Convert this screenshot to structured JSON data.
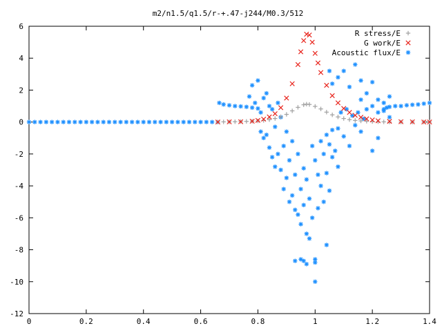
{
  "chart_data": {
    "type": "scatter",
    "title": "m2/n1.5/q1.5/r-+.47-j244/M0.3/512",
    "xlabel": "",
    "ylabel": "",
    "xlim": [
      0,
      1.4
    ],
    "ylim": [
      -12,
      6
    ],
    "x_ticks": [
      0,
      0.2,
      0.4,
      0.6,
      0.8,
      1,
      1.2,
      1.4
    ],
    "x_tick_labels": [
      "0",
      "0.2",
      "0.4",
      "0.6",
      "0.8",
      "1",
      "1.2",
      "1.4"
    ],
    "y_ticks": [
      -12,
      -10,
      -8,
      -6,
      -4,
      -2,
      0,
      2,
      4,
      6
    ],
    "y_tick_labels": [
      "-12",
      "-10",
      "-8",
      "-6",
      "-4",
      "-2",
      "0",
      "2",
      "4",
      "6"
    ],
    "grid": false,
    "legend_position": "top-right",
    "series": [
      {
        "name": "R stress/E",
        "marker": "+",
        "color": "#a0a0a0",
        "points": [
          [
            0.66,
            0.0
          ],
          [
            0.68,
            0.01
          ],
          [
            0.7,
            0.01
          ],
          [
            0.72,
            0.02
          ],
          [
            0.74,
            0.03
          ],
          [
            0.76,
            0.04
          ],
          [
            0.78,
            0.05
          ],
          [
            0.8,
            0.07
          ],
          [
            0.82,
            0.1
          ],
          [
            0.84,
            0.15
          ],
          [
            0.86,
            0.22
          ],
          [
            0.88,
            0.33
          ],
          [
            0.9,
            0.48
          ],
          [
            0.92,
            0.7
          ],
          [
            0.94,
            0.92
          ],
          [
            0.96,
            1.08
          ],
          [
            0.97,
            1.12
          ],
          [
            0.98,
            1.1
          ],
          [
            1.0,
            0.98
          ],
          [
            1.02,
            0.82
          ],
          [
            1.04,
            0.62
          ],
          [
            1.06,
            0.45
          ],
          [
            1.08,
            0.32
          ],
          [
            1.1,
            0.22
          ],
          [
            1.12,
            0.15
          ],
          [
            1.14,
            0.1
          ],
          [
            1.16,
            0.07
          ],
          [
            1.18,
            0.05
          ],
          [
            1.2,
            0.03
          ],
          [
            1.22,
            0.02
          ],
          [
            1.24,
            0.01
          ],
          [
            1.26,
            0.0
          ],
          [
            1.3,
            0.0
          ],
          [
            1.34,
            0.0
          ],
          [
            1.38,
            0.0
          ],
          [
            1.4,
            0.0
          ]
        ]
      },
      {
        "name": "G work/E",
        "marker": "x",
        "color": "#e8241c",
        "points": [
          [
            0.66,
            0.0
          ],
          [
            0.7,
            0.01
          ],
          [
            0.74,
            0.02
          ],
          [
            0.78,
            0.05
          ],
          [
            0.8,
            0.1
          ],
          [
            0.82,
            0.18
          ],
          [
            0.84,
            0.32
          ],
          [
            0.86,
            0.52
          ],
          [
            0.88,
            0.9
          ],
          [
            0.9,
            1.5
          ],
          [
            0.92,
            2.4
          ],
          [
            0.94,
            3.6
          ],
          [
            0.95,
            4.4
          ],
          [
            0.96,
            5.1
          ],
          [
            0.97,
            5.5
          ],
          [
            0.98,
            5.45
          ],
          [
            0.99,
            5.0
          ],
          [
            1.0,
            4.3
          ],
          [
            1.01,
            3.7
          ],
          [
            1.02,
            3.1
          ],
          [
            1.04,
            2.3
          ],
          [
            1.06,
            1.65
          ],
          [
            1.08,
            1.2
          ],
          [
            1.1,
            0.85
          ],
          [
            1.12,
            0.6
          ],
          [
            1.14,
            0.42
          ],
          [
            1.16,
            0.3
          ],
          [
            1.18,
            0.2
          ],
          [
            1.2,
            0.13
          ],
          [
            1.22,
            0.08
          ],
          [
            1.26,
            0.04
          ],
          [
            1.3,
            0.02
          ],
          [
            1.34,
            0.01
          ],
          [
            1.38,
            0.0
          ],
          [
            1.4,
            0.0
          ]
        ]
      },
      {
        "name": "Acoustic flux/E",
        "marker": "*",
        "color": "#1e90ff",
        "points": [
          [
            0.0,
            0.0
          ],
          [
            0.02,
            0.0
          ],
          [
            0.04,
            0.0
          ],
          [
            0.06,
            0.0
          ],
          [
            0.08,
            0.0
          ],
          [
            0.1,
            0.0
          ],
          [
            0.12,
            0.0
          ],
          [
            0.14,
            0.0
          ],
          [
            0.16,
            0.0
          ],
          [
            0.18,
            0.0
          ],
          [
            0.2,
            0.0
          ],
          [
            0.22,
            0.0
          ],
          [
            0.24,
            0.0
          ],
          [
            0.26,
            0.0
          ],
          [
            0.28,
            0.0
          ],
          [
            0.3,
            0.0
          ],
          [
            0.32,
            0.0
          ],
          [
            0.34,
            0.0
          ],
          [
            0.36,
            0.0
          ],
          [
            0.38,
            0.0
          ],
          [
            0.4,
            0.0
          ],
          [
            0.42,
            0.0
          ],
          [
            0.44,
            0.0
          ],
          [
            0.46,
            0.0
          ],
          [
            0.48,
            0.0
          ],
          [
            0.5,
            0.0
          ],
          [
            0.52,
            0.0
          ],
          [
            0.54,
            0.0
          ],
          [
            0.56,
            0.0
          ],
          [
            0.58,
            0.0
          ],
          [
            0.6,
            0.0
          ],
          [
            0.62,
            0.0
          ],
          [
            0.64,
            0.0
          ],
          [
            0.66,
            0.0
          ],
          [
            0.665,
            1.2
          ],
          [
            0.68,
            1.1
          ],
          [
            0.7,
            1.05
          ],
          [
            0.72,
            1.0
          ],
          [
            0.74,
            0.98
          ],
          [
            0.76,
            0.95
          ],
          [
            0.78,
            0.9
          ],
          [
            0.8,
            0.85
          ],
          [
            0.77,
            1.6
          ],
          [
            0.78,
            2.3
          ],
          [
            0.79,
            1.2
          ],
          [
            0.8,
            2.6
          ],
          [
            0.81,
            0.6
          ],
          [
            0.81,
            -0.6
          ],
          [
            0.82,
            1.5
          ],
          [
            0.82,
            -1.0
          ],
          [
            0.83,
            1.8
          ],
          [
            0.83,
            -0.8
          ],
          [
            0.84,
            1.0
          ],
          [
            0.84,
            -1.6
          ],
          [
            0.85,
            0.8
          ],
          [
            0.85,
            -2.2
          ],
          [
            0.86,
            -0.3
          ],
          [
            0.86,
            -2.8
          ],
          [
            0.87,
            1.2
          ],
          [
            0.87,
            -2.0
          ],
          [
            0.88,
            0.3
          ],
          [
            0.88,
            -3.0
          ],
          [
            0.89,
            -1.5
          ],
          [
            0.89,
            -4.2
          ],
          [
            0.9,
            -0.6
          ],
          [
            0.9,
            -3.5
          ],
          [
            0.91,
            -2.4
          ],
          [
            0.91,
            -5.0
          ],
          [
            0.92,
            -1.2
          ],
          [
            0.92,
            -4.6
          ],
          [
            0.93,
            -3.3
          ],
          [
            0.93,
            -5.5
          ],
          [
            0.94,
            -2.0
          ],
          [
            0.94,
            -5.8
          ],
          [
            0.95,
            -4.2
          ],
          [
            0.95,
            -6.4
          ],
          [
            0.96,
            -2.9
          ],
          [
            0.96,
            -5.2
          ],
          [
            0.97,
            -3.6
          ],
          [
            0.97,
            -7.0
          ],
          [
            0.98,
            -4.8
          ],
          [
            0.98,
            -7.3
          ],
          [
            0.99,
            -1.5
          ],
          [
            0.99,
            -6.0
          ],
          [
            1.0,
            -2.4
          ],
          [
            1.0,
            -8.6
          ],
          [
            1.0,
            -8.8
          ],
          [
            1.01,
            -3.3
          ],
          [
            1.01,
            -5.4
          ],
          [
            1.02,
            -1.2
          ],
          [
            1.02,
            -4.0
          ],
          [
            1.03,
            -2.0
          ],
          [
            1.03,
            -5.0
          ],
          [
            1.04,
            -0.8
          ],
          [
            1.04,
            -3.2
          ],
          [
            1.05,
            -1.4
          ],
          [
            1.05,
            -4.3
          ],
          [
            1.06,
            -0.5
          ],
          [
            1.06,
            -2.2
          ],
          [
            1.07,
            -1.8
          ],
          [
            1.08,
            -0.4
          ],
          [
            1.08,
            -2.8
          ],
          [
            1.09,
            0.6
          ],
          [
            1.1,
            -0.9
          ],
          [
            1.11,
            0.8
          ],
          [
            1.12,
            -1.5
          ],
          [
            1.13,
            0.4
          ],
          [
            1.14,
            -0.2
          ],
          [
            1.15,
            0.6
          ],
          [
            1.16,
            -0.6
          ],
          [
            1.17,
            0.2
          ],
          [
            1.0,
            -10.0
          ],
          [
            1.04,
            -7.7
          ],
          [
            0.93,
            -8.7
          ],
          [
            0.95,
            -8.6
          ],
          [
            0.96,
            -8.7
          ],
          [
            0.97,
            -8.9
          ],
          [
            1.05,
            3.2
          ],
          [
            1.06,
            2.4
          ],
          [
            1.08,
            2.8
          ],
          [
            1.1,
            3.2
          ],
          [
            1.12,
            2.2
          ],
          [
            1.14,
            3.6
          ],
          [
            1.16,
            2.6
          ],
          [
            1.18,
            1.8
          ],
          [
            1.2,
            2.5
          ],
          [
            1.22,
            1.4
          ],
          [
            1.24,
            1.2
          ],
          [
            1.26,
            1.6
          ],
          [
            1.16,
            1.4
          ],
          [
            1.18,
            0.8
          ],
          [
            1.2,
            1.0
          ],
          [
            1.22,
            0.6
          ],
          [
            1.24,
            0.7
          ],
          [
            1.26,
            0.3
          ],
          [
            1.2,
            -1.8
          ],
          [
            1.22,
            -1.0
          ],
          [
            1.24,
            0.8
          ],
          [
            1.25,
            0.9
          ],
          [
            1.26,
            0.95
          ],
          [
            1.28,
            1.0
          ],
          [
            1.3,
            1.0
          ],
          [
            1.32,
            1.05
          ],
          [
            1.34,
            1.08
          ],
          [
            1.36,
            1.1
          ],
          [
            1.38,
            1.15
          ],
          [
            1.4,
            1.2
          ]
        ]
      }
    ]
  }
}
